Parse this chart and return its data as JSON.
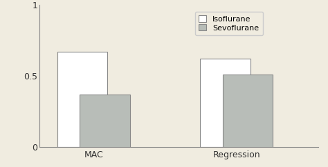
{
  "groups": [
    "MAC",
    "Regression"
  ],
  "isoflurane_values": [
    0.67,
    0.62
  ],
  "sevoflurane_values": [
    0.37,
    0.51
  ],
  "isoflurane_color": "#ffffff",
  "sevoflurane_color": "#b8bdb8",
  "bar_edge_color": "#888888",
  "ylim": [
    0,
    1.0
  ],
  "yticks": [
    0,
    0.5,
    1
  ],
  "ytick_labels": [
    "0",
    "0.5",
    "1"
  ],
  "legend_labels": [
    "Isoflurane",
    "Sevoflurane"
  ],
  "background_color": "#f0ece0",
  "axes_background": "#f0ece0",
  "bar_width": 0.35,
  "font_size": 9,
  "tick_font_size": 9
}
